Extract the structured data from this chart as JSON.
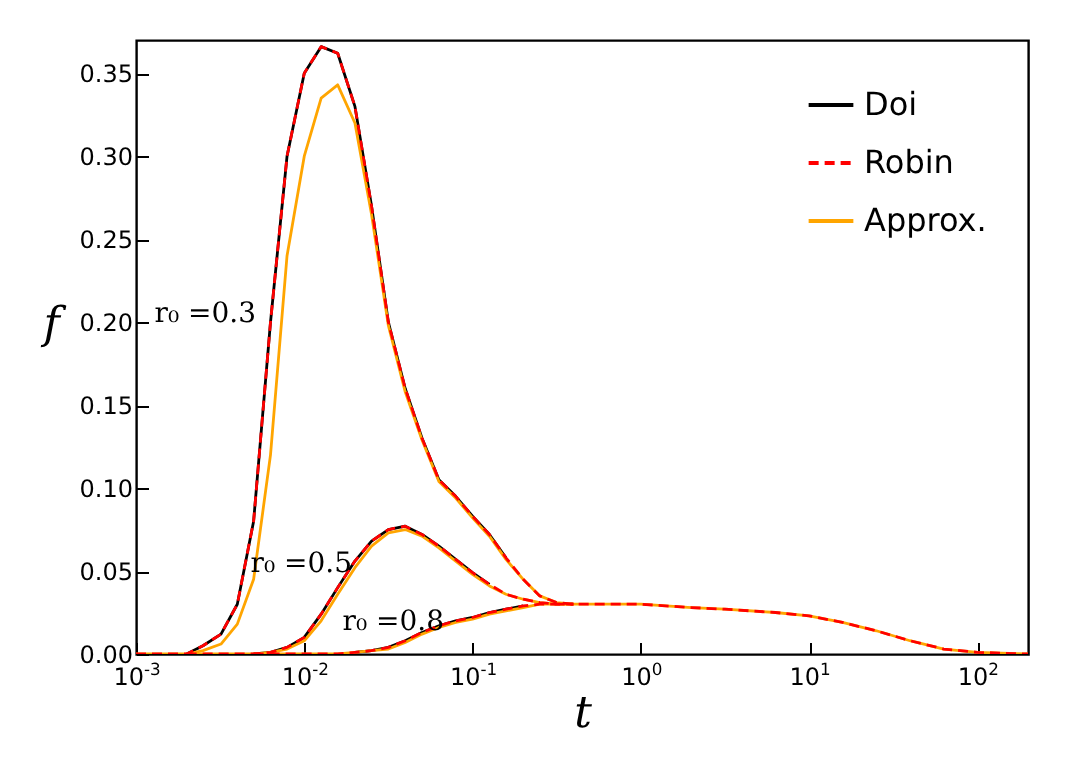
{
  "chart_data": {
    "type": "line",
    "xlabel": "t",
    "ylabel": "f",
    "log": "x",
    "legend": "top right",
    "xlim": [
      0.001,
      200
    ],
    "ylim": [
      0,
      0.37
    ],
    "xticks": [
      {
        "value": 0.001,
        "label": "10$^{-3}$"
      },
      {
        "value": 0.01,
        "label": "10$^{-2}$"
      },
      {
        "value": 0.1,
        "label": "10$^{-1}$"
      },
      {
        "value": 1,
        "label": "10$^{0}$"
      },
      {
        "value": 10,
        "label": "10$^{1}$"
      },
      {
        "value": 100,
        "label": "10$^{2}$"
      }
    ],
    "yticks": [
      {
        "value": 0,
        "label": "0.00"
      },
      {
        "value": 0.05,
        "label": "0.05"
      },
      {
        "value": 0.1,
        "label": "0.10"
      },
      {
        "value": 0.15,
        "label": "0.15"
      },
      {
        "value": 0.2,
        "label": "0.20"
      },
      {
        "value": 0.25,
        "label": "0.25"
      },
      {
        "value": 0.3,
        "label": "0.30"
      },
      {
        "value": 0.35,
        "label": "0.35"
      }
    ],
    "x": [
      0.001,
      0.002,
      0.0025,
      0.0032,
      0.004,
      0.005,
      0.0063,
      0.0079,
      0.01,
      0.0126,
      0.0158,
      0.02,
      0.0251,
      0.0316,
      0.0398,
      0.0501,
      0.0631,
      0.0794,
      0.1,
      0.126,
      0.158,
      0.2,
      0.251,
      0.316,
      0.398,
      0.631,
      1,
      2,
      3.16,
      6.31,
      10,
      15.8,
      25.1,
      39.8,
      63.1,
      100,
      200
    ],
    "series": [
      {
        "name": "Doi",
        "color": "#000000",
        "line_style": "solid",
        "values": [
          null,
          0,
          0.005,
          0.012,
          0.03,
          0.08,
          0.2,
          0.3,
          0.35,
          0.366,
          0.362,
          0.33,
          0.27,
          0.2,
          0.16,
          0.13,
          0.105,
          0.095,
          0.083,
          0.072,
          0.058,
          null,
          null,
          null,
          null,
          null,
          null,
          null,
          null,
          null,
          null,
          null,
          null,
          null,
          null,
          null,
          null
        ]
      },
      {
        "name": "Robin",
        "color": "#ff0000",
        "line_style": "dashed",
        "values": [
          0,
          0,
          0.005,
          0.012,
          0.03,
          0.08,
          0.2,
          0.3,
          0.35,
          0.366,
          0.362,
          0.33,
          0.27,
          0.2,
          0.16,
          0.13,
          0.105,
          0.095,
          0.083,
          0.072,
          0.058,
          0.045,
          0.035,
          0.031,
          0.03,
          0.03,
          0.03,
          0.028,
          0.027,
          0.025,
          0.023,
          0.019,
          0.014,
          0.008,
          0.003,
          0.001,
          0
        ]
      },
      {
        "name": "Approx.",
        "color": "#ffa500",
        "line_style": "solid",
        "values": [
          0,
          0,
          0.002,
          0.006,
          0.018,
          0.045,
          0.12,
          0.24,
          0.3,
          0.335,
          0.343,
          0.32,
          0.265,
          0.198,
          0.158,
          0.129,
          0.104,
          0.094,
          0.082,
          0.071,
          0.057,
          0.045,
          0.035,
          0.031,
          0.03,
          0.03,
          0.03,
          0.028,
          0.027,
          0.025,
          0.023,
          0.019,
          0.014,
          0.008,
          0.003,
          0.001,
          0
        ]
      },
      {
        "color": "#000000",
        "line_style": "solid",
        "values": [
          null,
          null,
          null,
          null,
          null,
          0,
          0.001,
          0.004,
          0.01,
          0.024,
          0.04,
          0.056,
          0.068,
          0.075,
          0.077,
          0.072,
          0.065,
          0.057,
          0.049,
          0.042,
          null,
          null,
          null,
          null,
          null,
          null,
          null,
          null,
          null,
          null,
          null,
          null,
          null,
          null,
          null,
          null,
          null
        ]
      },
      {
        "color": "#ff0000",
        "line_style": "dashed",
        "values": [
          null,
          0,
          0,
          0,
          0,
          0,
          0.001,
          0.004,
          0.01,
          0.024,
          0.04,
          0.056,
          0.068,
          0.075,
          0.077,
          0.072,
          0.065,
          0.057,
          0.049,
          0.042,
          0.036,
          0.033,
          0.031,
          0.03,
          0.03,
          null,
          null,
          null,
          null,
          null,
          null,
          null,
          null,
          null,
          null,
          null,
          null
        ]
      },
      {
        "color": "#ffa500",
        "line_style": "solid",
        "values": [
          null,
          0,
          0,
          0,
          0,
          0,
          0.001,
          0.003,
          0.008,
          0.02,
          0.036,
          0.052,
          0.065,
          0.073,
          0.075,
          0.071,
          0.064,
          0.056,
          0.048,
          0.041,
          0.036,
          0.033,
          0.031,
          0.03,
          0.03,
          null,
          null,
          null,
          null,
          null,
          null,
          null,
          null,
          null,
          null,
          null,
          null
        ]
      },
      {
        "color": "#000000",
        "line_style": "solid",
        "values": [
          null,
          null,
          null,
          null,
          null,
          null,
          null,
          null,
          null,
          null,
          null,
          0.001,
          0.002,
          0.004,
          0.008,
          0.013,
          0.017,
          0.02,
          0.022,
          0.025,
          0.027,
          0.029,
          null,
          null,
          null,
          null,
          null,
          null,
          null,
          null,
          null,
          null,
          null,
          null,
          null,
          null,
          null
        ]
      },
      {
        "color": "#ff0000",
        "line_style": "dashed",
        "values": [
          null,
          null,
          null,
          null,
          null,
          0,
          0,
          0,
          0,
          0,
          0,
          0.001,
          0.002,
          0.004,
          0.008,
          0.013,
          0.017,
          0.02,
          0.022,
          0.025,
          0.027,
          0.029,
          0.03,
          0.03,
          0.03,
          null,
          null,
          null,
          null,
          null,
          null,
          null,
          null,
          null,
          null,
          null,
          null
        ]
      },
      {
        "color": "#ffa500",
        "line_style": "solid",
        "values": [
          null,
          null,
          null,
          null,
          null,
          0,
          0,
          0,
          0,
          0,
          0,
          0.001,
          0.002,
          0.003,
          0.007,
          0.012,
          0.016,
          0.019,
          0.021,
          0.024,
          0.026,
          0.028,
          0.03,
          0.03,
          0.03,
          null,
          null,
          null,
          null,
          null,
          null,
          null,
          null,
          null,
          null,
          null,
          null
        ]
      }
    ],
    "annotations": [
      "r₀ =0.3",
      "r₀ =0.5",
      "r₀ =0.8"
    ]
  }
}
